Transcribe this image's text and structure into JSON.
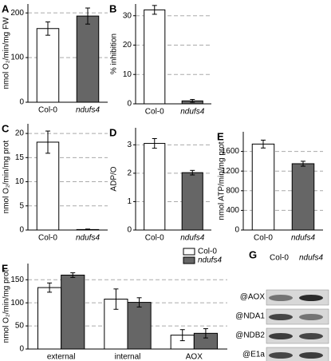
{
  "chart_data": [
    {
      "type": "bar",
      "panel": "A",
      "ylabel": "nmol O₂/min/mg FW",
      "categories": [
        "Col-0",
        "ndufs4"
      ],
      "values": [
        165,
        193
      ],
      "errors": [
        15,
        18
      ],
      "colors": [
        "#ffffff",
        "#666666"
      ],
      "ylim": [
        0,
        220
      ],
      "yticks": [
        0,
        100,
        200
      ],
      "grid": true
    },
    {
      "type": "bar",
      "panel": "B",
      "ylabel": "% inhibition",
      "categories": [
        "Col-0",
        "ndufs4"
      ],
      "values": [
        32,
        1
      ],
      "errors": [
        1.5,
        0.5
      ],
      "colors": [
        "#ffffff",
        "#666666"
      ],
      "ylim": [
        0,
        34
      ],
      "yticks": [
        0,
        10,
        20,
        30
      ],
      "grid": true
    },
    {
      "type": "bar",
      "panel": "C",
      "ylabel": "nmol O₂/min/mg prot",
      "categories": [
        "Col-0",
        "ndufs4"
      ],
      "values": [
        18.2,
        0.1
      ],
      "errors": [
        2.3,
        0.1
      ],
      "colors": [
        "#ffffff",
        "#666666"
      ],
      "ylim": [
        0,
        22
      ],
      "yticks": [
        0,
        5,
        10,
        15,
        20
      ],
      "grid": true
    },
    {
      "type": "bar",
      "panel": "D",
      "ylabel": "ADP/O",
      "categories": [
        "Col-0",
        "ndufs4"
      ],
      "values": [
        3.05,
        2.02
      ],
      "errors": [
        0.17,
        0.08
      ],
      "colors": [
        "#ffffff",
        "#666666"
      ],
      "ylim": [
        0,
        3.6
      ],
      "yticks": [
        0,
        1,
        2,
        3
      ],
      "grid": true
    },
    {
      "type": "bar",
      "panel": "E",
      "ylabel": "nmol ATP/min/mg prot",
      "categories": [
        "Col-0",
        "ndufs4"
      ],
      "values": [
        1750,
        1350
      ],
      "errors": [
        80,
        50
      ],
      "colors": [
        "#ffffff",
        "#666666"
      ],
      "ylim": [
        0,
        2000
      ],
      "yticks": [
        0,
        400,
        800,
        1200,
        1600
      ],
      "grid": true
    },
    {
      "type": "grouped-bar",
      "panel": "F",
      "ylabel": "nmol O₂/min/mg prot",
      "categories": [
        "external",
        "internal",
        "AOX"
      ],
      "series": [
        {
          "name": "Col-0",
          "color": "#ffffff",
          "values": [
            133,
            108,
            30
          ],
          "errors": [
            10,
            22,
            12
          ]
        },
        {
          "name": "ndufs4",
          "color": "#666666",
          "values": [
            160,
            101,
            34
          ],
          "errors": [
            5,
            10,
            10
          ]
        }
      ],
      "ylim": [
        0,
        185
      ],
      "yticks": [
        0,
        50,
        100,
        150
      ],
      "grid": true,
      "legend": "top-right"
    }
  ],
  "blot": {
    "panel": "G",
    "lanes": [
      "Col-0",
      "ndufs4"
    ],
    "rows": [
      "@AOX",
      "@NDA1",
      "@NDB2",
      "@E1a"
    ]
  }
}
